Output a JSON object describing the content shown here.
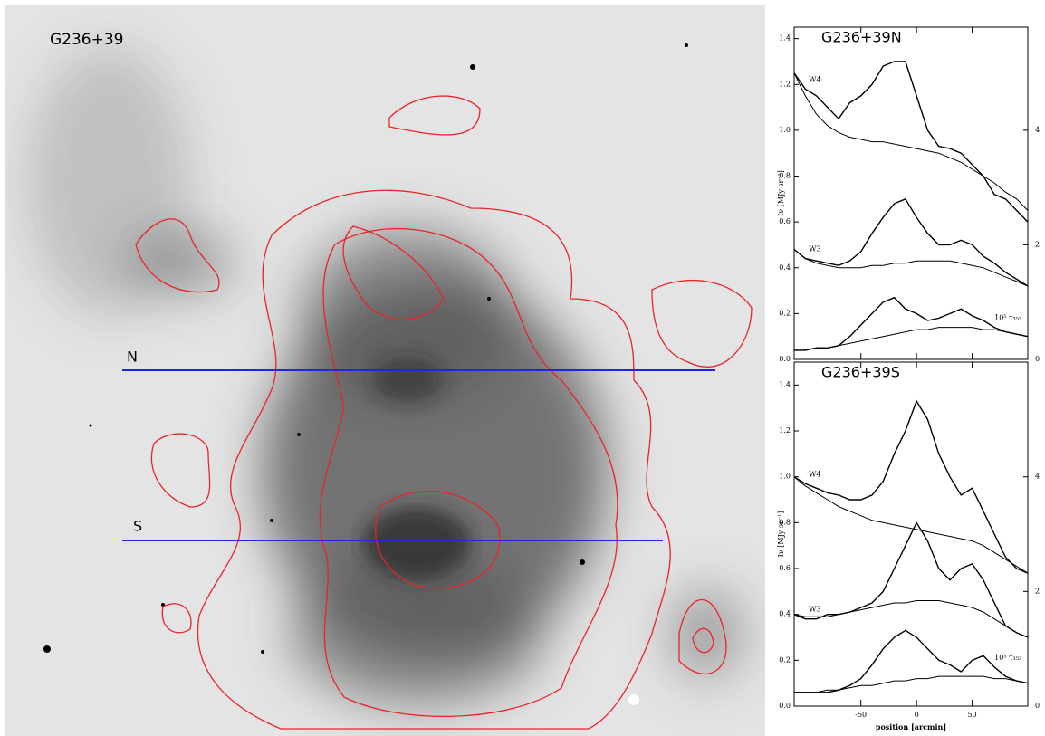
{
  "chart_data": [
    {
      "type": "image",
      "title": "G236+39",
      "labels": [
        "N",
        "S"
      ]
    },
    {
      "type": "line",
      "title": "G236+39N",
      "ylabel": "Iν [MJy sr⁻¹]",
      "x": [
        -110,
        -100,
        -90,
        -80,
        -70,
        -60,
        -50,
        -40,
        -30,
        -20,
        -10,
        0,
        10,
        20,
        30,
        40,
        50,
        60,
        70,
        80,
        90,
        100
      ],
      "series": [
        {
          "name": "W4",
          "color": "#000",
          "values": [
            1.25,
            1.18,
            1.15,
            1.1,
            1.05,
            1.12,
            1.15,
            1.2,
            1.28,
            1.3,
            1.3,
            1.15,
            1.0,
            0.93,
            0.92,
            0.9,
            0.85,
            0.8,
            0.72,
            0.7,
            0.65,
            0.6
          ]
        },
        {
          "color": "#000",
          "values": [
            1.25,
            1.15,
            1.07,
            1.02,
            0.99,
            0.97,
            0.96,
            0.95,
            0.95,
            0.94,
            0.93,
            0.92,
            0.91,
            0.9,
            0.88,
            0.86,
            0.83,
            0.8,
            0.77,
            0.73,
            0.7,
            0.65
          ]
        },
        {
          "name": "W3",
          "color": "#000",
          "values": [
            0.48,
            0.44,
            0.43,
            0.42,
            0.41,
            0.43,
            0.47,
            0.55,
            0.62,
            0.68,
            0.7,
            0.62,
            0.55,
            0.5,
            0.5,
            0.52,
            0.5,
            0.45,
            0.42,
            0.38,
            0.35,
            0.32
          ]
        },
        {
          "color": "#000",
          "values": [
            0.48,
            0.44,
            0.42,
            0.41,
            0.4,
            0.4,
            0.4,
            0.41,
            0.41,
            0.42,
            0.42,
            0.43,
            0.43,
            0.43,
            0.43,
            0.42,
            0.41,
            0.4,
            0.38,
            0.36,
            0.34,
            0.32
          ]
        },
        {
          "name": "10⁵ τ₃₅₃",
          "color": "#000",
          "values": [
            0.04,
            0.04,
            0.05,
            0.05,
            0.06,
            0.1,
            0.15,
            0.2,
            0.25,
            0.27,
            0.22,
            0.2,
            0.17,
            0.18,
            0.2,
            0.22,
            0.19,
            0.17,
            0.14,
            0.12,
            0.11,
            0.1
          ]
        },
        {
          "color": "#000",
          "values": [
            0.04,
            0.04,
            0.05,
            0.05,
            0.06,
            0.07,
            0.08,
            0.09,
            0.1,
            0.11,
            0.12,
            0.13,
            0.13,
            0.14,
            0.14,
            0.14,
            0.14,
            0.13,
            0.13,
            0.12,
            0.11,
            0.1
          ]
        }
      ],
      "xlim": [
        -110,
        100
      ],
      "xticks": [
        -50,
        0,
        50
      ],
      "ylim": [
        0,
        1.45
      ],
      "yticks": [
        {
          "value": 0,
          "label": "0.0"
        },
        {
          "value": 0.2,
          "label": "0.2"
        },
        {
          "value": 0.4,
          "label": "0.4"
        },
        {
          "value": 0.6,
          "label": "0.6"
        },
        {
          "value": 0.8,
          "label": "0.8"
        },
        {
          "value": 1.0,
          "label": "1.0"
        },
        {
          "value": 1.2,
          "label": "1.2"
        },
        {
          "value": 1.4,
          "label": "1.4"
        }
      ],
      "y2lim": [
        0,
        5.8
      ],
      "y2ticks": [
        0,
        2,
        4
      ]
    },
    {
      "type": "line",
      "title": "G236+39S",
      "ylabel": "Iν [MJy sr⁻¹]",
      "xlabel": "position [arcmin]",
      "x": [
        -110,
        -100,
        -90,
        -80,
        -70,
        -60,
        -50,
        -40,
        -30,
        -20,
        -10,
        0,
        10,
        20,
        30,
        40,
        50,
        60,
        70,
        80,
        90,
        100
      ],
      "series": [
        {
          "name": "W4",
          "color": "#000",
          "values": [
            1.0,
            0.97,
            0.95,
            0.93,
            0.92,
            0.9,
            0.9,
            0.92,
            0.98,
            1.1,
            1.2,
            1.33,
            1.25,
            1.1,
            1.0,
            0.92,
            0.95,
            0.85,
            0.75,
            0.65,
            0.6,
            0.58
          ]
        },
        {
          "color": "#000",
          "values": [
            1.0,
            0.96,
            0.93,
            0.9,
            0.87,
            0.85,
            0.83,
            0.81,
            0.8,
            0.79,
            0.78,
            0.77,
            0.76,
            0.75,
            0.74,
            0.73,
            0.72,
            0.7,
            0.67,
            0.64,
            0.61,
            0.58
          ]
        },
        {
          "name": "W3",
          "color": "#000",
          "values": [
            0.4,
            0.38,
            0.38,
            0.4,
            0.4,
            0.41,
            0.43,
            0.45,
            0.5,
            0.6,
            0.7,
            0.8,
            0.72,
            0.6,
            0.55,
            0.6,
            0.62,
            0.55,
            0.45,
            0.35,
            0.32,
            0.3
          ]
        },
        {
          "color": "#000",
          "values": [
            0.4,
            0.39,
            0.39,
            0.39,
            0.4,
            0.41,
            0.42,
            0.43,
            0.44,
            0.45,
            0.45,
            0.46,
            0.46,
            0.46,
            0.45,
            0.44,
            0.43,
            0.41,
            0.38,
            0.35,
            0.32,
            0.3
          ]
        },
        {
          "name": "10⁵ τ₃₅₃",
          "color": "#000",
          "values": [
            0.06,
            0.06,
            0.06,
            0.06,
            0.07,
            0.09,
            0.12,
            0.18,
            0.25,
            0.3,
            0.33,
            0.3,
            0.25,
            0.2,
            0.18,
            0.15,
            0.2,
            0.22,
            0.17,
            0.13,
            0.11,
            0.1
          ]
        },
        {
          "color": "#000",
          "values": [
            0.06,
            0.06,
            0.06,
            0.07,
            0.07,
            0.08,
            0.09,
            0.09,
            0.1,
            0.11,
            0.11,
            0.12,
            0.12,
            0.13,
            0.13,
            0.13,
            0.13,
            0.13,
            0.12,
            0.12,
            0.11,
            0.1
          ]
        }
      ],
      "xlim": [
        -110,
        100
      ],
      "xticks": [
        -50,
        0,
        50
      ],
      "ylim": [
        0,
        1.5
      ],
      "yticks": [
        {
          "value": 0,
          "label": "0.0"
        },
        {
          "value": 0.2,
          "label": "0.2"
        },
        {
          "value": 0.4,
          "label": "0.4"
        },
        {
          "value": 0.6,
          "label": "0.6"
        },
        {
          "value": 0.8,
          "label": "0.8"
        },
        {
          "value": 1.0,
          "label": "1.0"
        },
        {
          "value": 1.2,
          "label": "1.2"
        },
        {
          "value": 1.4,
          "label": "1.4"
        }
      ],
      "y2lim": [
        0,
        6
      ],
      "y2ticks": [
        0,
        2,
        4
      ]
    }
  ]
}
